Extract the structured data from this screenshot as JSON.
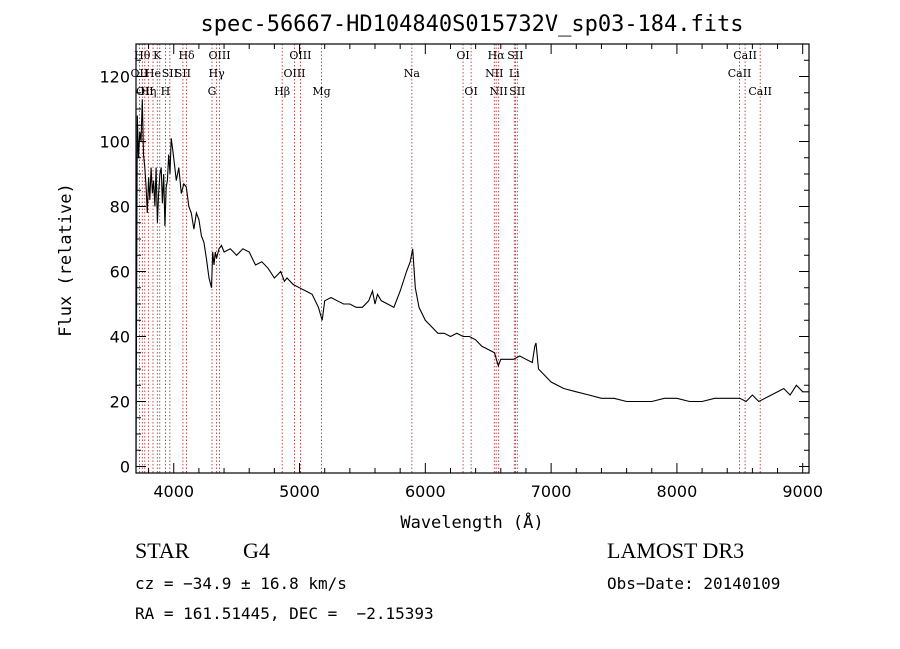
{
  "chart_data": {
    "type": "line",
    "title": "spec-56667-HD104840S015732V_sp03-184.fits",
    "xlabel": "Wavelength (Å)",
    "ylabel": "Flux (relative)",
    "xlim": [
      3700,
      9050
    ],
    "ylim": [
      -2,
      130
    ],
    "xticks": [
      4000,
      5000,
      6000,
      7000,
      8000,
      9000
    ],
    "yticks": [
      0,
      20,
      40,
      60,
      80,
      100,
      120
    ],
    "series": [
      {
        "name": "flux",
        "x": [
          3700,
          3710,
          3720,
          3730,
          3740,
          3750,
          3760,
          3770,
          3780,
          3790,
          3800,
          3810,
          3820,
          3830,
          3840,
          3850,
          3860,
          3870,
          3880,
          3890,
          3900,
          3910,
          3920,
          3930,
          3940,
          3950,
          3960,
          3970,
          3980,
          3990,
          4000,
          4020,
          4040,
          4060,
          4080,
          4100,
          4120,
          4140,
          4160,
          4180,
          4200,
          4220,
          4240,
          4260,
          4280,
          4300,
          4310,
          4320,
          4330,
          4340,
          4360,
          4380,
          4400,
          4450,
          4500,
          4550,
          4600,
          4650,
          4700,
          4750,
          4800,
          4850,
          4880,
          4900,
          4950,
          5000,
          5050,
          5100,
          5150,
          5180,
          5200,
          5250,
          5300,
          5350,
          5400,
          5450,
          5500,
          5550,
          5580,
          5600,
          5620,
          5650,
          5700,
          5750,
          5800,
          5850,
          5880,
          5900,
          5920,
          5950,
          6000,
          6050,
          6100,
          6150,
          6200,
          6250,
          6300,
          6350,
          6400,
          6450,
          6500,
          6550,
          6580,
          6600,
          6650,
          6700,
          6750,
          6800,
          6850,
          6870,
          6880,
          6900,
          6950,
          7000,
          7100,
          7200,
          7300,
          7400,
          7500,
          7600,
          7700,
          7800,
          7900,
          8000,
          8100,
          8200,
          8300,
          8400,
          8500,
          8550,
          8600,
          8650,
          8700,
          8750,
          8800,
          8850,
          8900,
          8950,
          9000,
          9050
        ],
        "y": [
          0,
          108,
          95,
          103,
          100,
          113,
          96,
          92,
          86,
          78,
          89,
          82,
          92,
          84,
          88,
          80,
          92,
          75,
          84,
          90,
          92,
          81,
          90,
          74,
          86,
          88,
          96,
          90,
          101,
          98,
          95,
          88,
          92,
          84,
          87,
          86,
          80,
          78,
          73,
          78,
          76,
          71,
          69,
          64,
          58,
          55,
          66,
          62,
          66,
          64,
          67,
          68,
          66,
          67,
          65,
          67,
          66,
          62,
          63,
          61,
          58,
          60,
          57,
          58,
          56,
          55,
          54,
          53,
          49,
          45,
          51,
          52,
          51,
          50,
          50,
          49,
          49,
          51,
          54,
          50,
          53,
          51,
          50,
          49,
          54,
          60,
          63,
          67,
          55,
          49,
          45,
          43,
          41,
          41,
          40,
          41,
          40,
          40,
          39,
          37,
          36,
          35,
          31,
          33,
          33,
          33,
          34,
          33,
          32,
          37,
          38,
          30,
          28,
          26,
          24,
          23,
          22,
          21,
          21,
          20,
          20,
          20,
          21,
          21,
          20,
          20,
          21,
          21,
          21,
          20,
          22,
          20,
          21,
          22,
          23,
          24,
          22,
          25,
          23,
          23
        ]
      }
    ],
    "lines": [
      {
        "x": 3727,
        "label": "OII",
        "row": 2
      },
      {
        "x": 3750,
        "label": "Hθ",
        "row": 1
      },
      {
        "x": 3770,
        "label": "OII",
        "row": 3
      },
      {
        "x": 3798,
        "label": "Hη",
        "row": 3
      },
      {
        "x": 3835,
        "label": "He",
        "row": 2
      },
      {
        "x": 3869,
        "label": "K",
        "row": 1
      },
      {
        "x": 3889,
        "label": "",
        "row": 0
      },
      {
        "x": 3934,
        "label": "H",
        "row": 3
      },
      {
        "x": 3969,
        "label": "SII",
        "row": 2
      },
      {
        "x": 4073,
        "label": "SII",
        "row": 2
      },
      {
        "x": 4102,
        "label": "Hδ",
        "row": 1
      },
      {
        "x": 4304,
        "label": "G",
        "row": 3
      },
      {
        "x": 4341,
        "label": "Hγ",
        "row": 2
      },
      {
        "x": 4364,
        "label": "OIII",
        "row": 1
      },
      {
        "x": 4862,
        "label": "Hβ",
        "row": 3
      },
      {
        "x": 4960,
        "label": "OIII",
        "row": 2
      },
      {
        "x": 5007,
        "label": "OIII",
        "row": 1
      },
      {
        "x": 5175,
        "label": "Mg",
        "row": 3
      },
      {
        "x": 5893,
        "label": "Na",
        "row": 2
      },
      {
        "x": 6300,
        "label": "OI",
        "row": 1
      },
      {
        "x": 6364,
        "label": "OI",
        "row": 3
      },
      {
        "x": 6548,
        "label": "NII",
        "row": 2
      },
      {
        "x": 6563,
        "label": "Hα",
        "row": 1
      },
      {
        "x": 6583,
        "label": "NII",
        "row": 3
      },
      {
        "x": 6707,
        "label": "Li",
        "row": 2
      },
      {
        "x": 6716,
        "label": "SII",
        "row": 1
      },
      {
        "x": 6731,
        "label": "SII",
        "row": 3
      },
      {
        "x": 8498,
        "label": "CaII",
        "row": 2
      },
      {
        "x": 8542,
        "label": "CaII",
        "row": 1
      },
      {
        "x": 8662,
        "label": "CaII",
        "row": 3
      }
    ],
    "line_color": "#b22222"
  },
  "info": {
    "class": "STAR",
    "subclass": "G4",
    "survey": "LAMOST DR3",
    "cz": "cz = −34.9 ± 16.8 km/s",
    "obs_date": "Obs−Date: 20140109",
    "radec": "RA = 161.51445, DEC =  −2.15393"
  }
}
